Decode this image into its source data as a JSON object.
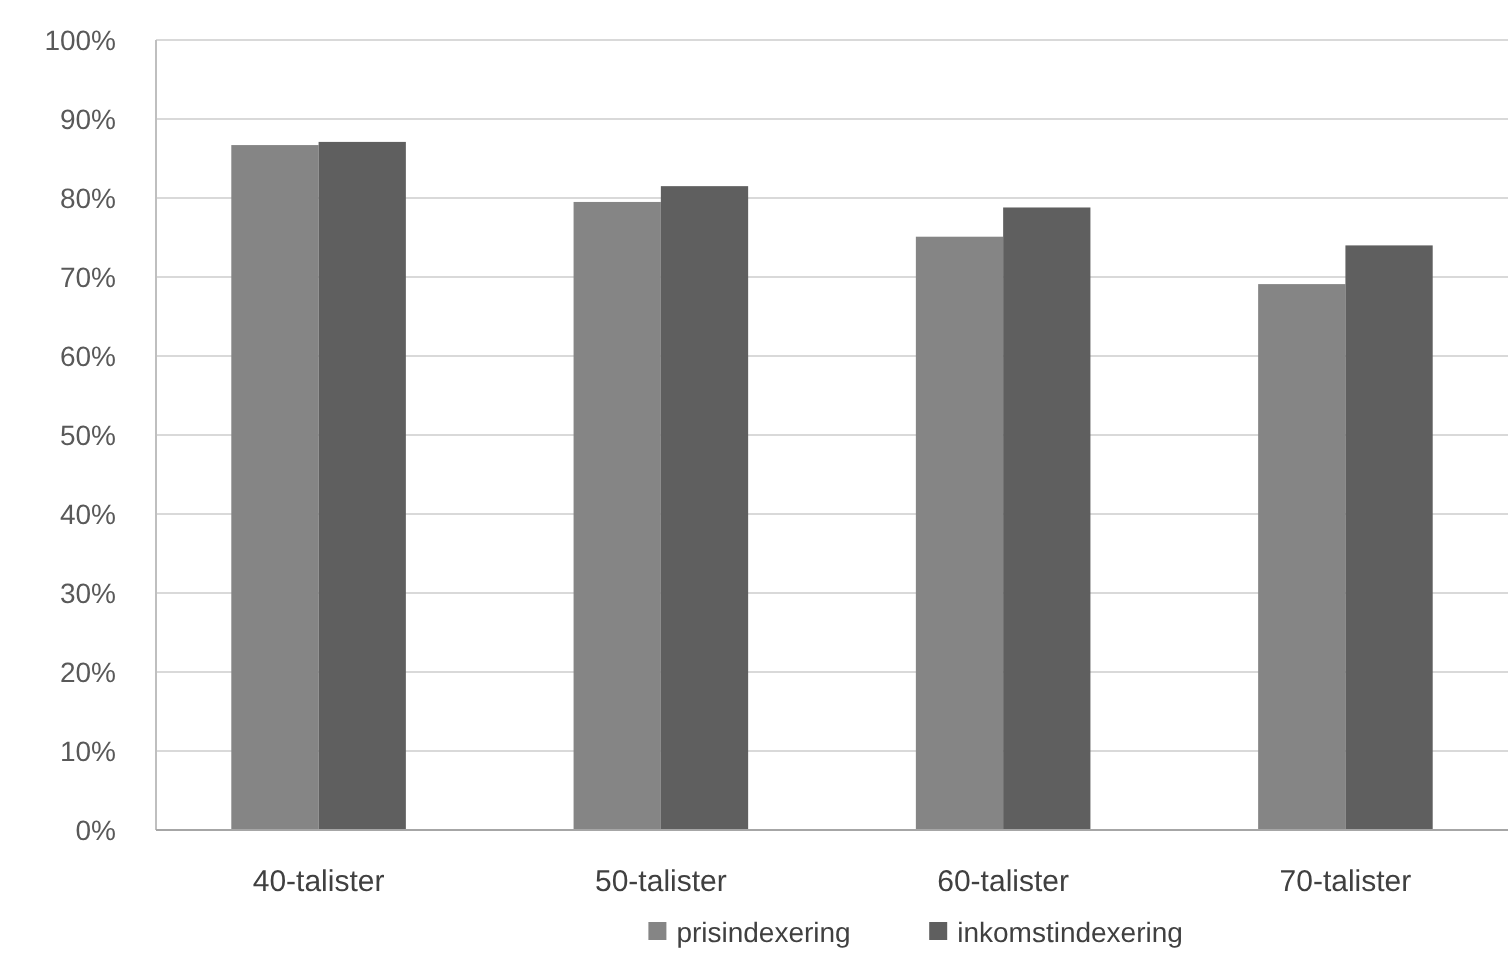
{
  "chart_data": {
    "type": "bar",
    "categories": [
      "40-talister",
      "50-talister",
      "60-talister",
      "70-talister"
    ],
    "series": [
      {
        "name": "prisindexering",
        "color": "#858585",
        "values": [
          86.7,
          79.5,
          75.1,
          69.1
        ]
      },
      {
        "name": "inkomstindexering",
        "color": "#5f5f5f",
        "values": [
          87.1,
          81.5,
          78.8,
          74.0
        ]
      }
    ],
    "ylim": [
      0,
      100
    ],
    "yticks": [
      {
        "value": 0,
        "label": "0%"
      },
      {
        "value": 10,
        "label": "10%"
      },
      {
        "value": 20,
        "label": "20%"
      },
      {
        "value": 30,
        "label": "30%"
      },
      {
        "value": 40,
        "label": "40%"
      },
      {
        "value": 50,
        "label": "50%"
      },
      {
        "value": 60,
        "label": "60%"
      },
      {
        "value": 70,
        "label": "70%"
      },
      {
        "value": 80,
        "label": "80%"
      },
      {
        "value": 90,
        "label": "90%"
      },
      {
        "value": 100,
        "label": "100%"
      }
    ],
    "grid": "y",
    "legend": "bottom"
  }
}
